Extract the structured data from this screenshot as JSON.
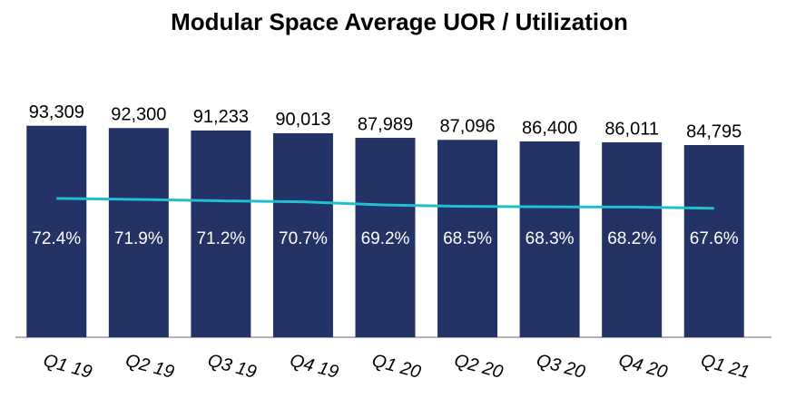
{
  "chart_data": {
    "type": "bar",
    "title": "Modular Space Average UOR / Utilization",
    "categories": [
      "Q1 19",
      "Q2 19",
      "Q3 19",
      "Q4 19",
      "Q1 20",
      "Q2 20",
      "Q3 20",
      "Q4 20",
      "Q1 21"
    ],
    "series": [
      {
        "name": "Average UOR",
        "type": "bar",
        "color": "#243366",
        "values": [
          93309,
          92300,
          91233,
          90013,
          87989,
          87096,
          86400,
          86011,
          84795
        ],
        "value_labels": [
          "93,309",
          "92,300",
          "91,233",
          "90,013",
          "87,989",
          "87,096",
          "86,400",
          "86,011",
          "84,795"
        ]
      },
      {
        "name": "Utilization",
        "type": "line",
        "axis": "y2",
        "color": "#1fbfd0",
        "values": [
          72.4,
          71.9,
          71.2,
          70.7,
          69.2,
          68.5,
          68.3,
          68.2,
          67.6
        ],
        "value_labels": [
          "72.4%",
          "71.9%",
          "71.2%",
          "70.7%",
          "69.2%",
          "68.5%",
          "68.3%",
          "68.2%",
          "67.6%"
        ]
      }
    ],
    "ylim": [
      0,
      100000
    ],
    "y2lim": [
      5,
      115
    ]
  }
}
